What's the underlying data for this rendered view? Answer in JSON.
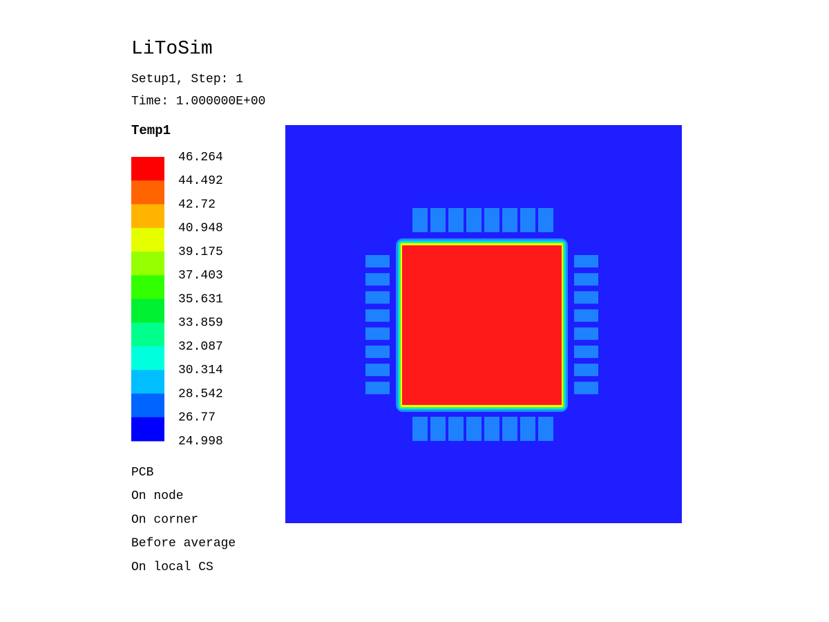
{
  "header": {
    "title": "LiToSim",
    "lines": [
      "Setup1, Step: 1",
      "Time: 1.000000E+00"
    ]
  },
  "legend": {
    "title": "Temp1",
    "labels": [
      "46.264",
      "44.492",
      "42.72",
      "40.948",
      "39.175",
      "37.403",
      "35.631",
      "33.859",
      "32.087",
      "30.314",
      "28.542",
      "26.77",
      "24.998"
    ],
    "colors": [
      "#ff0000",
      "#ff6400",
      "#ffb400",
      "#e6ff00",
      "#96ff00",
      "#32ff00",
      "#00f032",
      "#00ff8c",
      "#00ffdc",
      "#00beff",
      "#0064ff",
      "#0000ff"
    ]
  },
  "notes": [
    "PCB",
    "On node",
    "On corner",
    "Before average",
    "On local CS"
  ]
}
